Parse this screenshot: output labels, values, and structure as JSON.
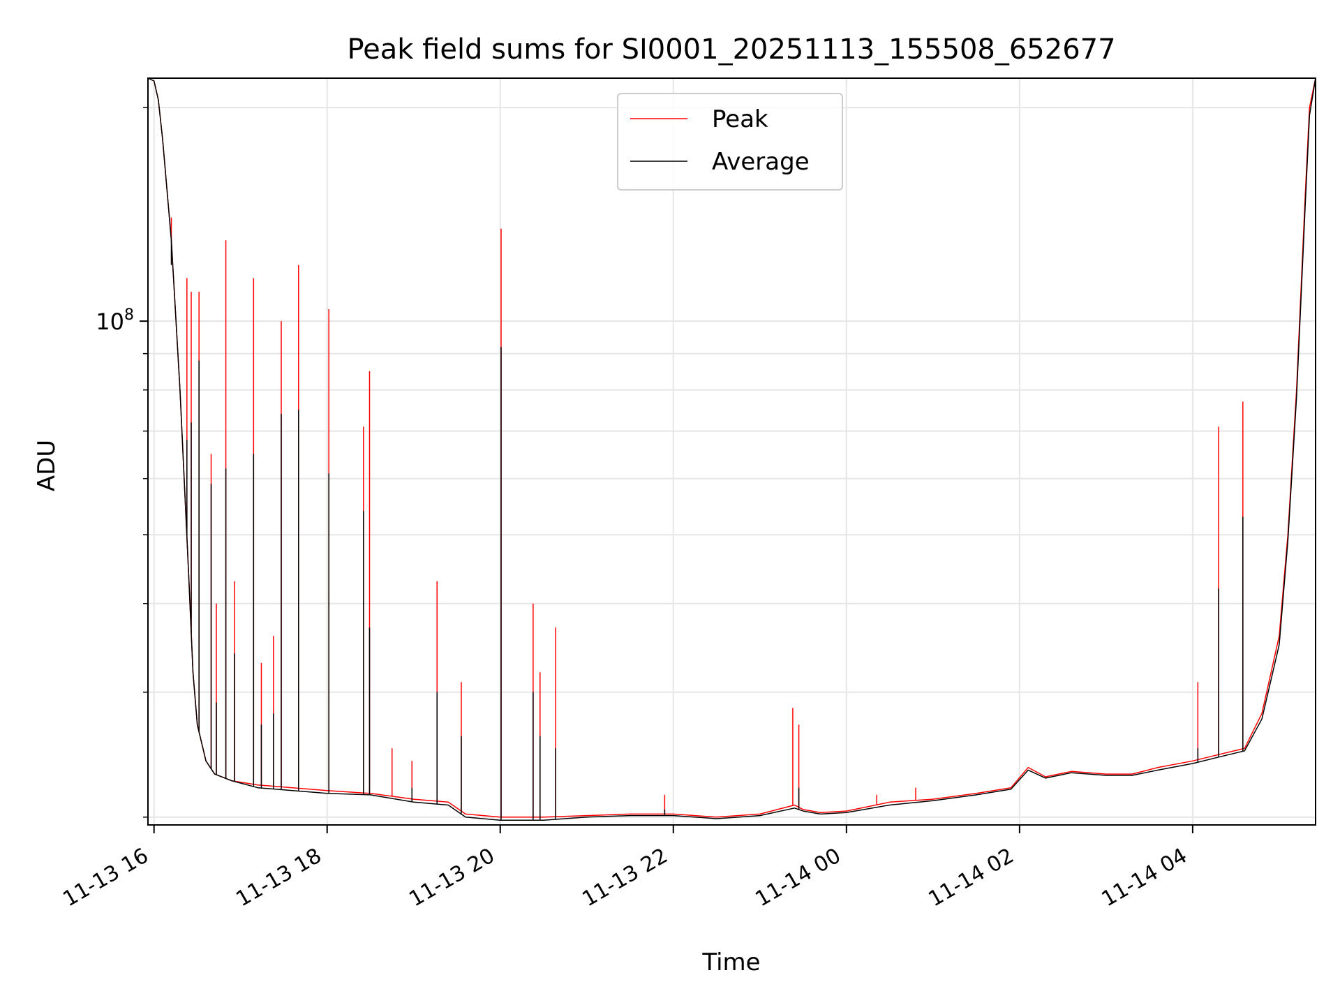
{
  "chart_data": {
    "type": "line",
    "title": "Peak field sums for SI0001_20251113_155508_652677",
    "xlabel": "Time",
    "ylabel": "ADU",
    "yscale": "log",
    "grid": true,
    "legend_location": "upper-center",
    "x_ticks": [
      {
        "t": 16.0,
        "label": "11-13 16"
      },
      {
        "t": 18.0,
        "label": "11-13 18"
      },
      {
        "t": 20.0,
        "label": "11-13 20"
      },
      {
        "t": 22.0,
        "label": "11-13 22"
      },
      {
        "t": 24.0,
        "label": "11-14 00"
      },
      {
        "t": 26.0,
        "label": "11-14 02"
      },
      {
        "t": 28.0,
        "label": "11-14 04"
      }
    ],
    "x_unit": "hours since 2025-11-13 00:00",
    "xlim": [
      15.93,
      29.42
    ],
    "ylim": [
      19500000.0,
      220000000.0
    ],
    "y_major_ticks": [
      {
        "value": 100000000,
        "base": "10",
        "exp": "8"
      }
    ],
    "y_minor_ticks": [
      20000000.0,
      30000000.0,
      40000000.0,
      50000000.0,
      60000000.0,
      70000000.0,
      80000000.0,
      90000000.0,
      200000000.0
    ],
    "series": [
      {
        "name": "Peak",
        "color": "#ff0000",
        "points": [
          [
            15.93,
            220000000.0
          ],
          [
            16.0,
            218000000.0
          ],
          [
            16.05,
            205000000.0
          ],
          [
            16.1,
            180000000.0
          ],
          [
            16.2,
            130000000.0
          ],
          [
            16.3,
            80000000.0
          ],
          [
            16.4,
            44000000.0
          ],
          [
            16.45,
            32000000.0
          ],
          [
            16.5,
            27000000.0
          ],
          [
            16.6,
            24000000.0
          ],
          [
            16.7,
            23000000.0
          ],
          [
            16.9,
            22500000.0
          ],
          [
            17.2,
            22200000.0
          ],
          [
            17.6,
            22000000.0
          ],
          [
            18.0,
            21800000.0
          ],
          [
            18.5,
            21600000.0
          ],
          [
            19.0,
            21200000.0
          ],
          [
            19.4,
            21000000.0
          ],
          [
            19.6,
            20200000.0
          ],
          [
            20.0,
            20000000.0
          ],
          [
            20.5,
            20000000.0
          ],
          [
            21.0,
            20100000.0
          ],
          [
            21.5,
            20200000.0
          ],
          [
            22.0,
            20200000.0
          ],
          [
            22.5,
            20000000.0
          ],
          [
            23.0,
            20200000.0
          ],
          [
            23.4,
            20800000.0
          ],
          [
            23.5,
            20500000.0
          ],
          [
            23.7,
            20300000.0
          ],
          [
            24.0,
            20400000.0
          ],
          [
            24.5,
            21000000.0
          ],
          [
            25.0,
            21200000.0
          ],
          [
            25.5,
            21600000.0
          ],
          [
            25.9,
            22000000.0
          ],
          [
            26.1,
            23500000.0
          ],
          [
            26.3,
            22800000.0
          ],
          [
            26.6,
            23200000.0
          ],
          [
            27.0,
            23000000.0
          ],
          [
            27.3,
            23000000.0
          ],
          [
            27.6,
            23500000.0
          ],
          [
            28.0,
            24000000.0
          ],
          [
            28.3,
            24500000.0
          ],
          [
            28.6,
            25000000.0
          ],
          [
            28.8,
            28000000.0
          ],
          [
            29.0,
            36000000.0
          ],
          [
            29.1,
            50000000.0
          ],
          [
            29.2,
            80000000.0
          ],
          [
            29.3,
            150000000.0
          ],
          [
            29.35,
            200000000.0
          ],
          [
            29.42,
            220000000.0
          ]
        ],
        "spikes": [
          [
            16.2,
            140000000.0
          ],
          [
            16.38,
            115000000.0
          ],
          [
            16.43,
            110000000.0
          ],
          [
            16.52,
            110000000.0
          ],
          [
            16.66,
            65000000.0
          ],
          [
            16.72,
            40000000.0
          ],
          [
            16.83,
            130000000.0
          ],
          [
            16.93,
            43000000.0
          ],
          [
            17.15,
            115000000.0
          ],
          [
            17.24,
            33000000.0
          ],
          [
            17.38,
            36000000.0
          ],
          [
            17.47,
            100000000.0
          ],
          [
            17.67,
            120000000.0
          ],
          [
            18.02,
            104000000.0
          ],
          [
            18.42,
            71000000.0
          ],
          [
            18.49,
            85000000.0
          ],
          [
            18.75,
            25000000.0
          ],
          [
            18.98,
            24000000.0
          ],
          [
            19.27,
            43000000.0
          ],
          [
            19.55,
            31000000.0
          ],
          [
            20.01,
            135000000.0
          ],
          [
            20.38,
            40000000.0
          ],
          [
            20.46,
            32000000.0
          ],
          [
            20.64,
            37000000.0
          ],
          [
            21.9,
            21500000.0
          ],
          [
            23.38,
            28500000.0
          ],
          [
            23.45,
            27000000.0
          ],
          [
            24.35,
            21500000.0
          ],
          [
            24.8,
            22000000.0
          ],
          [
            28.06,
            31000000.0
          ],
          [
            28.3,
            71000000.0
          ],
          [
            28.58,
            77000000.0
          ]
        ]
      },
      {
        "name": "Average",
        "color": "#000000",
        "points": [
          [
            15.93,
            220000000.0
          ],
          [
            16.0,
            218000000.0
          ],
          [
            16.05,
            205000000.0
          ],
          [
            16.1,
            180000000.0
          ],
          [
            16.2,
            130000000.0
          ],
          [
            16.3,
            80000000.0
          ],
          [
            16.4,
            44000000.0
          ],
          [
            16.45,
            32000000.0
          ],
          [
            16.5,
            27000000.0
          ],
          [
            16.6,
            24000000.0
          ],
          [
            16.7,
            23000000.0
          ],
          [
            16.9,
            22500000.0
          ],
          [
            17.2,
            22000000.0
          ],
          [
            17.6,
            21800000.0
          ],
          [
            18.0,
            21600000.0
          ],
          [
            18.5,
            21500000.0
          ],
          [
            19.0,
            21000000.0
          ],
          [
            19.4,
            20800000.0
          ],
          [
            19.6,
            20000000.0
          ],
          [
            20.0,
            19800000.0
          ],
          [
            20.5,
            19800000.0
          ],
          [
            21.0,
            20000000.0
          ],
          [
            21.5,
            20100000.0
          ],
          [
            22.0,
            20100000.0
          ],
          [
            22.5,
            19900000.0
          ],
          [
            23.0,
            20100000.0
          ],
          [
            23.4,
            20600000.0
          ],
          [
            23.5,
            20400000.0
          ],
          [
            23.7,
            20200000.0
          ],
          [
            24.0,
            20300000.0
          ],
          [
            24.5,
            20800000.0
          ],
          [
            25.0,
            21100000.0
          ],
          [
            25.5,
            21500000.0
          ],
          [
            25.9,
            21900000.0
          ],
          [
            26.1,
            23300000.0
          ],
          [
            26.3,
            22700000.0
          ],
          [
            26.6,
            23100000.0
          ],
          [
            27.0,
            22900000.0
          ],
          [
            27.3,
            22900000.0
          ],
          [
            27.6,
            23300000.0
          ],
          [
            28.0,
            23800000.0
          ],
          [
            28.3,
            24300000.0
          ],
          [
            28.6,
            24800000.0
          ],
          [
            28.8,
            27500000.0
          ],
          [
            29.0,
            35000000.0
          ],
          [
            29.1,
            49000000.0
          ],
          [
            29.2,
            78000000.0
          ],
          [
            29.3,
            145000000.0
          ],
          [
            29.35,
            195000000.0
          ],
          [
            29.42,
            220000000.0
          ]
        ],
        "spikes": [
          [
            16.2,
            120000000.0
          ],
          [
            16.38,
            68000000.0
          ],
          [
            16.43,
            72000000.0
          ],
          [
            16.52,
            88000000.0
          ],
          [
            16.66,
            59000000.0
          ],
          [
            16.72,
            29000000.0
          ],
          [
            16.83,
            62000000.0
          ],
          [
            16.93,
            34000000.0
          ],
          [
            17.15,
            65000000.0
          ],
          [
            17.24,
            27000000.0
          ],
          [
            17.38,
            28000000.0
          ],
          [
            17.47,
            74000000.0
          ],
          [
            17.67,
            75000000.0
          ],
          [
            18.02,
            61000000.0
          ],
          [
            18.42,
            54000000.0
          ],
          [
            18.49,
            37000000.0
          ],
          [
            18.98,
            22000000.0
          ],
          [
            19.27,
            30000000.0
          ],
          [
            19.55,
            26000000.0
          ],
          [
            20.01,
            92000000.0
          ],
          [
            20.38,
            30000000.0
          ],
          [
            20.46,
            26000000.0
          ],
          [
            20.64,
            25000000.0
          ],
          [
            21.9,
            20500000.0
          ],
          [
            23.45,
            22000000.0
          ],
          [
            28.06,
            25000000.0
          ],
          [
            28.3,
            42000000.0
          ],
          [
            28.58,
            53000000.0
          ]
        ]
      }
    ]
  }
}
